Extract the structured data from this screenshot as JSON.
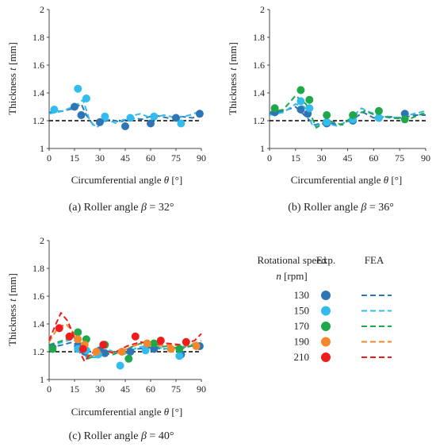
{
  "colors": {
    "n130": "#2e75b6",
    "n150": "#33bbee",
    "n170": "#1ea84a",
    "n190": "#f4872c",
    "n210": "#ee1c1c",
    "reference": "#000000"
  },
  "legend": {
    "title_line1": "Rotational speed",
    "title_n": "n",
    "title_unit": " [rpm]",
    "exp_label": "Exp.",
    "fea_label": "FEA",
    "items": [
      {
        "label": "130",
        "color_key": "n130"
      },
      {
        "label": "150",
        "color_key": "n150"
      },
      {
        "label": "170",
        "color_key": "n170"
      },
      {
        "label": "190",
        "color_key": "n190"
      },
      {
        "label": "210",
        "color_key": "n210"
      }
    ]
  },
  "chart_data": [
    {
      "type": "scatter",
      "caption_prefix": "(a) Roller angle ",
      "caption_symbol": "β",
      "caption_value": " = 32°",
      "xlabel_text": "Circumferential angle ",
      "xlabel_symbol": "θ",
      "xlabel_unit": " [°]",
      "ylabel_text": "Thickness ",
      "ylabel_symbol": "t",
      "ylabel_unit": " [mm]",
      "xlim": [
        0,
        90
      ],
      "ylim": [
        1,
        2
      ],
      "xticks": [
        "0",
        "15",
        "30",
        "45",
        "60",
        "75",
        "90"
      ],
      "yticks": [
        "1",
        "1.2",
        "1.4",
        "1.6",
        "1.8",
        "2"
      ],
      "reference_y": 1.2,
      "series": [
        {
          "name": "130",
          "color_key": "n130",
          "exp": [
            [
              15,
              1.3
            ],
            [
              19,
              1.24
            ],
            [
              30,
              1.19
            ],
            [
              45,
              1.16
            ],
            [
              60,
              1.18
            ],
            [
              75,
              1.22
            ],
            [
              89,
              1.25
            ]
          ],
          "fea": [
            [
              0,
              1.26
            ],
            [
              8,
              1.27
            ],
            [
              15,
              1.29
            ],
            [
              19,
              1.32
            ],
            [
              22,
              1.24
            ],
            [
              26,
              1.17
            ],
            [
              30,
              1.18
            ],
            [
              36,
              1.21
            ],
            [
              42,
              1.19
            ],
            [
              48,
              1.22
            ],
            [
              55,
              1.21
            ],
            [
              62,
              1.24
            ],
            [
              70,
              1.22
            ],
            [
              78,
              1.23
            ],
            [
              85,
              1.22
            ],
            [
              90,
              1.25
            ]
          ]
        },
        {
          "name": "150",
          "color_key": "n150",
          "exp": [
            [
              3,
              1.28
            ],
            [
              17,
              1.43
            ],
            [
              22,
              1.36
            ],
            [
              33,
              1.23
            ],
            [
              48,
              1.22
            ],
            [
              62,
              1.23
            ],
            [
              78,
              1.18
            ]
          ],
          "fea": [
            [
              0,
              1.25
            ],
            [
              8,
              1.27
            ],
            [
              16,
              1.31
            ],
            [
              20,
              1.35
            ],
            [
              24,
              1.2
            ],
            [
              28,
              1.15
            ],
            [
              34,
              1.21
            ],
            [
              40,
              1.18
            ],
            [
              47,
              1.23
            ],
            [
              54,
              1.25
            ],
            [
              60,
              1.22
            ],
            [
              68,
              1.24
            ],
            [
              76,
              1.22
            ],
            [
              83,
              1.24
            ],
            [
              90,
              1.27
            ]
          ]
        }
      ]
    },
    {
      "type": "scatter",
      "caption_prefix": "(b) Roller angle ",
      "caption_symbol": "β",
      "caption_value": " = 36°",
      "xlabel_text": "Circumferential angle ",
      "xlabel_symbol": "θ",
      "xlabel_unit": " [°]",
      "ylabel_text": "Thickness ",
      "ylabel_symbol": "t",
      "ylabel_unit": " [mm]",
      "xlim": [
        0,
        90
      ],
      "ylim": [
        1,
        2
      ],
      "xticks": [
        "0",
        "15",
        "30",
        "45",
        "60",
        "75",
        "90"
      ],
      "yticks": [
        "1",
        "1.2",
        "1.4",
        "1.6",
        "1.8",
        "2"
      ],
      "reference_y": 1.2,
      "series": [
        {
          "name": "130",
          "color_key": "n130",
          "exp": [
            [
              3,
              1.26
            ],
            [
              18,
              1.28
            ],
            [
              22,
              1.25
            ],
            [
              33,
              1.18
            ],
            [
              48,
              1.2
            ],
            [
              63,
              1.22
            ],
            [
              78,
              1.25
            ]
          ],
          "fea": [
            [
              0,
              1.25
            ],
            [
              8,
              1.27
            ],
            [
              15,
              1.3
            ],
            [
              20,
              1.24
            ],
            [
              26,
              1.17
            ],
            [
              32,
              1.19
            ],
            [
              40,
              1.17
            ],
            [
              48,
              1.21
            ],
            [
              54,
              1.26
            ],
            [
              60,
              1.22
            ],
            [
              68,
              1.23
            ],
            [
              76,
              1.22
            ],
            [
              84,
              1.24
            ],
            [
              90,
              1.24
            ]
          ]
        },
        {
          "name": "150",
          "color_key": "n150",
          "exp": [
            [
              18,
              1.34
            ],
            [
              23,
              1.29
            ],
            [
              33,
              1.19
            ],
            [
              48,
              1.21
            ],
            [
              63,
              1.22
            ]
          ],
          "fea": [
            [
              0,
              1.24
            ],
            [
              8,
              1.26
            ],
            [
              15,
              1.32
            ],
            [
              20,
              1.3
            ],
            [
              25,
              1.16
            ],
            [
              32,
              1.18
            ],
            [
              40,
              1.16
            ],
            [
              47,
              1.22
            ],
            [
              53,
              1.29
            ],
            [
              58,
              1.26
            ],
            [
              66,
              1.23
            ],
            [
              75,
              1.22
            ],
            [
              83,
              1.25
            ],
            [
              90,
              1.27
            ]
          ]
        },
        {
          "name": "170",
          "color_key": "n170",
          "exp": [
            [
              3,
              1.29
            ],
            [
              18,
              1.42
            ],
            [
              23,
              1.35
            ],
            [
              33,
              1.24
            ],
            [
              48,
              1.24
            ],
            [
              63,
              1.27
            ],
            [
              78,
              1.21
            ]
          ],
          "fea": [
            [
              0,
              1.26
            ],
            [
              8,
              1.28
            ],
            [
              15,
              1.38
            ],
            [
              21,
              1.32
            ],
            [
              27,
              1.15
            ],
            [
              34,
              1.2
            ],
            [
              42,
              1.17
            ],
            [
              49,
              1.24
            ],
            [
              55,
              1.27
            ],
            [
              61,
              1.24
            ],
            [
              70,
              1.22
            ],
            [
              80,
              1.21
            ],
            [
              88,
              1.25
            ],
            [
              90,
              1.25
            ]
          ]
        }
      ]
    },
    {
      "type": "scatter",
      "caption_prefix": "(c) Roller angle ",
      "caption_symbol": "β",
      "caption_value": " = 40°",
      "xlabel_text": "Circumferential angle ",
      "xlabel_symbol": "θ",
      "xlabel_unit": " [°]",
      "ylabel_text": "Thickness ",
      "ylabel_symbol": "t",
      "ylabel_unit": " [mm]",
      "xlim": [
        0,
        90
      ],
      "ylim": [
        1,
        2
      ],
      "xticks": [
        "0",
        "15",
        "30",
        "45",
        "60",
        "75",
        "90"
      ],
      "yticks": [
        "1",
        "1.2",
        "1.4",
        "1.6",
        "1.8",
        "2"
      ],
      "reference_y": 1.2,
      "series": [
        {
          "name": "130",
          "color_key": "n130",
          "exp": [
            [
              2,
              1.23
            ],
            [
              17,
              1.24
            ],
            [
              21,
              1.2
            ],
            [
              30,
              1.21
            ],
            [
              33,
              1.19
            ],
            [
              48,
              1.2
            ],
            [
              62,
              1.22
            ],
            [
              78,
              1.18
            ],
            [
              89,
              1.24
            ]
          ],
          "fea": [
            [
              0,
              1.23
            ],
            [
              8,
              1.25
            ],
            [
              14,
              1.27
            ],
            [
              18,
              1.23
            ],
            [
              22,
              1.17
            ],
            [
              28,
              1.18
            ],
            [
              36,
              1.2
            ],
            [
              44,
              1.19
            ],
            [
              52,
              1.22
            ],
            [
              60,
              1.23
            ],
            [
              68,
              1.22
            ],
            [
              76,
              1.23
            ],
            [
              84,
              1.24
            ],
            [
              90,
              1.25
            ]
          ]
        },
        {
          "name": "150",
          "color_key": "n150",
          "exp": [
            [
              17,
              1.22
            ],
            [
              22,
              1.21
            ],
            [
              29,
              1.18
            ],
            [
              42,
              1.1
            ],
            [
              57,
              1.21
            ],
            [
              77,
              1.17
            ]
          ],
          "fea": [
            [
              0,
              1.24
            ],
            [
              8,
              1.27
            ],
            [
              14,
              1.29
            ],
            [
              18,
              1.25
            ],
            [
              22,
              1.16
            ],
            [
              28,
              1.16
            ],
            [
              36,
              1.21
            ],
            [
              44,
              1.18
            ],
            [
              52,
              1.23
            ],
            [
              60,
              1.25
            ],
            [
              68,
              1.22
            ],
            [
              76,
              1.23
            ],
            [
              84,
              1.25
            ],
            [
              90,
              1.26
            ]
          ]
        },
        {
          "name": "170",
          "color_key": "n170",
          "exp": [
            [
              2,
              1.22
            ],
            [
              17,
              1.34
            ],
            [
              22,
              1.29
            ],
            [
              33,
              1.25
            ],
            [
              47,
              1.15
            ],
            [
              62,
              1.26
            ],
            [
              77,
              1.22
            ]
          ],
          "fea": [
            [
              0,
              1.25
            ],
            [
              8,
              1.28
            ],
            [
              14,
              1.31
            ],
            [
              19,
              1.26
            ],
            [
              23,
              1.15
            ],
            [
              30,
              1.19
            ],
            [
              38,
              1.18
            ],
            [
              46,
              1.22
            ],
            [
              54,
              1.26
            ],
            [
              62,
              1.23
            ],
            [
              70,
              1.24
            ],
            [
              78,
              1.22
            ],
            [
              86,
              1.25
            ],
            [
              90,
              1.26
            ]
          ]
        },
        {
          "name": "190",
          "color_key": "n190",
          "exp": [
            [
              17,
              1.29
            ],
            [
              21,
              1.25
            ],
            [
              28,
              1.2
            ],
            [
              43,
              1.2
            ],
            [
              58,
              1.26
            ],
            [
              72,
              1.22
            ],
            [
              87,
              1.24
            ]
          ],
          "fea": [
            [
              0,
              1.27
            ],
            [
              5,
              1.37
            ],
            [
              10,
              1.4
            ],
            [
              15,
              1.33
            ],
            [
              19,
              1.24
            ],
            [
              24,
              1.16
            ],
            [
              32,
              1.21
            ],
            [
              40,
              1.19
            ],
            [
              48,
              1.23
            ],
            [
              56,
              1.27
            ],
            [
              64,
              1.24
            ],
            [
              72,
              1.25
            ],
            [
              80,
              1.24
            ],
            [
              88,
              1.27
            ],
            [
              90,
              1.28
            ]
          ]
        },
        {
          "name": "210",
          "color_key": "n210",
          "exp": [
            [
              6,
              1.37
            ],
            [
              12,
              1.31
            ],
            [
              20,
              1.22
            ],
            [
              32,
              1.25
            ],
            [
              51,
              1.31
            ],
            [
              66,
              1.28
            ],
            [
              81,
              1.27
            ]
          ],
          "fea": [
            [
              0,
              1.28
            ],
            [
              4,
              1.4
            ],
            [
              7,
              1.48
            ],
            [
              11,
              1.42
            ],
            [
              15,
              1.3
            ],
            [
              18,
              1.2
            ],
            [
              21,
              1.13
            ],
            [
              24,
              1.18
            ],
            [
              30,
              1.22
            ],
            [
              38,
              1.19
            ],
            [
              46,
              1.24
            ],
            [
              54,
              1.27
            ],
            [
              62,
              1.25
            ],
            [
              70,
              1.26
            ],
            [
              78,
              1.25
            ],
            [
              86,
              1.28
            ],
            [
              90,
              1.33
            ]
          ]
        }
      ]
    }
  ]
}
